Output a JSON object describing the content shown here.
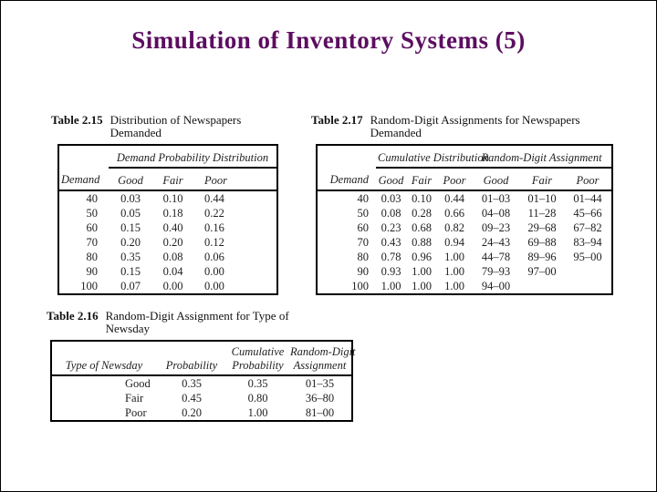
{
  "slide": {
    "title": "Simulation of Inventory Systems (5)",
    "title_color": "#5c0d60"
  },
  "table215": {
    "caption_label": "Table 2.15",
    "caption_line1": "Distribution of Newspapers",
    "caption_line2": "Demanded",
    "span_header": "Demand Probability Distribution",
    "columns": [
      "Demand",
      "Good",
      "Fair",
      "Poor"
    ],
    "rows": [
      [
        "40",
        "0.03",
        "0.10",
        "0.44"
      ],
      [
        "50",
        "0.05",
        "0.18",
        "0.22"
      ],
      [
        "60",
        "0.15",
        "0.40",
        "0.16"
      ],
      [
        "70",
        "0.20",
        "0.20",
        "0.12"
      ],
      [
        "80",
        "0.35",
        "0.08",
        "0.06"
      ],
      [
        "90",
        "0.15",
        "0.04",
        "0.00"
      ],
      [
        "100",
        "0.07",
        "0.00",
        "0.00"
      ]
    ]
  },
  "table217": {
    "caption_label": "Table 2.17",
    "caption_line1": "Random-Digit Assignments for Newspapers",
    "caption_line2": "Demanded",
    "span_header_1": "Cumulative Distribution",
    "span_header_2": "Random-Digit Assignment",
    "columns": [
      "Demand",
      "Good",
      "Fair",
      "Poor",
      "Good",
      "Fair",
      "Poor"
    ],
    "rows": [
      [
        "40",
        "0.03",
        "0.10",
        "0.44",
        "01–03",
        "01–10",
        "01–44"
      ],
      [
        "50",
        "0.08",
        "0.28",
        "0.66",
        "04–08",
        "11–28",
        "45–66"
      ],
      [
        "60",
        "0.23",
        "0.68",
        "0.82",
        "09–23",
        "29–68",
        "67–82"
      ],
      [
        "70",
        "0.43",
        "0.88",
        "0.94",
        "24–43",
        "69–88",
        "83–94"
      ],
      [
        "80",
        "0.78",
        "0.96",
        "1.00",
        "44–78",
        "89–96",
        "95–00"
      ],
      [
        "90",
        "0.93",
        "1.00",
        "1.00",
        "79–93",
        "97–00",
        ""
      ],
      [
        "100",
        "1.00",
        "1.00",
        "1.00",
        "94–00",
        "",
        ""
      ]
    ]
  },
  "table216": {
    "caption_label": "Table 2.16",
    "caption_line1": "Random-Digit Assignment for Type of",
    "caption_line2": "Newsday",
    "columns": [
      {
        "l1": "",
        "l2": "Type of Newsday"
      },
      {
        "l1": "",
        "l2": "Probability"
      },
      {
        "l1": "Cumulative",
        "l2": "Probability"
      },
      {
        "l1": "Random-Digit",
        "l2": "Assignment"
      }
    ],
    "rows": [
      [
        "Good",
        "0.35",
        "0.35",
        "01–35"
      ],
      [
        "Fair",
        "0.45",
        "0.80",
        "36–80"
      ],
      [
        "Poor",
        "0.20",
        "1.00",
        "81–00"
      ]
    ]
  }
}
